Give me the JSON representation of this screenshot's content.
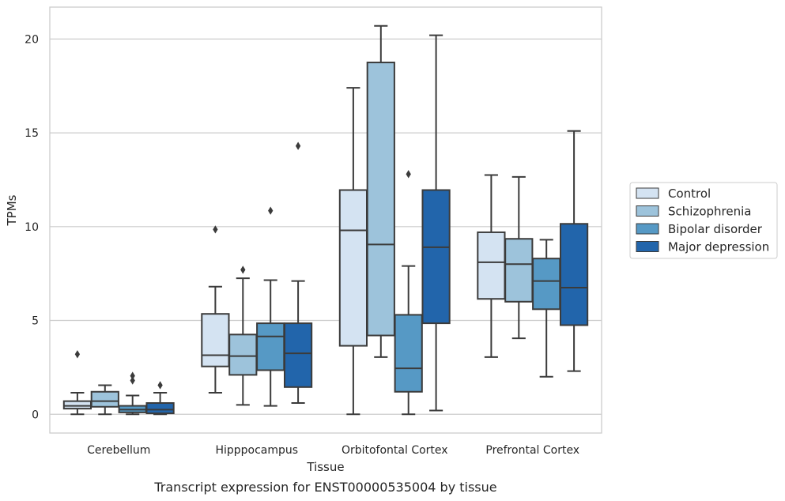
{
  "caption": "Transcript expression for ENST00000535004 by tissue",
  "chart_data": {
    "type": "box",
    "xlabel": "Tissue",
    "ylabel": "TPMs",
    "ylim": [
      -1,
      21.7
    ],
    "yticks": [
      0,
      5,
      10,
      15,
      20
    ],
    "grid": true,
    "legend_position": "right",
    "categories": [
      "Cerebellum",
      "Hipppocampus",
      "Orbitofontal Cortex",
      "Prefrontal Cortex"
    ],
    "series": [
      {
        "name": "Control",
        "color": "#d4e3f2",
        "boxes": [
          {
            "whislo": 0.0,
            "q1": 0.3,
            "med": 0.45,
            "q3": 0.7,
            "whishi": 1.15,
            "fliers": [
              3.2
            ]
          },
          {
            "whislo": 1.15,
            "q1": 2.55,
            "med": 3.15,
            "q3": 5.35,
            "whishi": 6.8,
            "fliers": [
              9.85
            ]
          },
          {
            "whislo": 0.0,
            "q1": 3.65,
            "med": 9.8,
            "q3": 11.95,
            "whishi": 17.4,
            "fliers": []
          },
          {
            "whislo": 3.05,
            "q1": 6.15,
            "med": 8.1,
            "q3": 9.7,
            "whishi": 12.75,
            "fliers": []
          }
        ]
      },
      {
        "name": "Schizophrenia",
        "color": "#9dc3db",
        "boxes": [
          {
            "whislo": 0.0,
            "q1": 0.4,
            "med": 0.7,
            "q3": 1.2,
            "whishi": 1.55,
            "fliers": []
          },
          {
            "whislo": 0.5,
            "q1": 2.1,
            "med": 3.1,
            "q3": 4.25,
            "whishi": 7.25,
            "fliers": [
              7.7
            ]
          },
          {
            "whislo": 3.05,
            "q1": 4.2,
            "med": 9.05,
            "q3": 18.75,
            "whishi": 20.7,
            "fliers": []
          },
          {
            "whislo": 4.05,
            "q1": 6.0,
            "med": 8.0,
            "q3": 9.35,
            "whishi": 12.65,
            "fliers": []
          }
        ]
      },
      {
        "name": "Bipolar disorder",
        "color": "#5699c5",
        "boxes": [
          {
            "whislo": 0.0,
            "q1": 0.1,
            "med": 0.25,
            "q3": 0.45,
            "whishi": 1.0,
            "fliers": [
              1.8,
              2.05
            ]
          },
          {
            "whislo": 0.45,
            "q1": 2.35,
            "med": 4.15,
            "q3": 4.85,
            "whishi": 7.15,
            "fliers": [
              10.85
            ]
          },
          {
            "whislo": 0.0,
            "q1": 1.2,
            "med": 2.45,
            "q3": 5.3,
            "whishi": 7.9,
            "fliers": [
              12.8
            ]
          },
          {
            "whislo": 2.0,
            "q1": 5.6,
            "med": 7.1,
            "q3": 8.3,
            "whishi": 9.3,
            "fliers": []
          }
        ]
      },
      {
        "name": "Major depression",
        "color": "#2265ab",
        "boxes": [
          {
            "whislo": 0.0,
            "q1": 0.05,
            "med": 0.25,
            "q3": 0.6,
            "whishi": 1.15,
            "fliers": [
              1.55
            ]
          },
          {
            "whislo": 0.6,
            "q1": 1.45,
            "med": 3.25,
            "q3": 4.85,
            "whishi": 7.1,
            "fliers": [
              14.3
            ]
          },
          {
            "whislo": 0.2,
            "q1": 4.85,
            "med": 8.9,
            "q3": 11.95,
            "whishi": 20.2,
            "fliers": []
          },
          {
            "whislo": 2.3,
            "q1": 4.75,
            "med": 6.75,
            "q3": 10.15,
            "whishi": 15.1,
            "fliers": []
          }
        ]
      }
    ]
  }
}
